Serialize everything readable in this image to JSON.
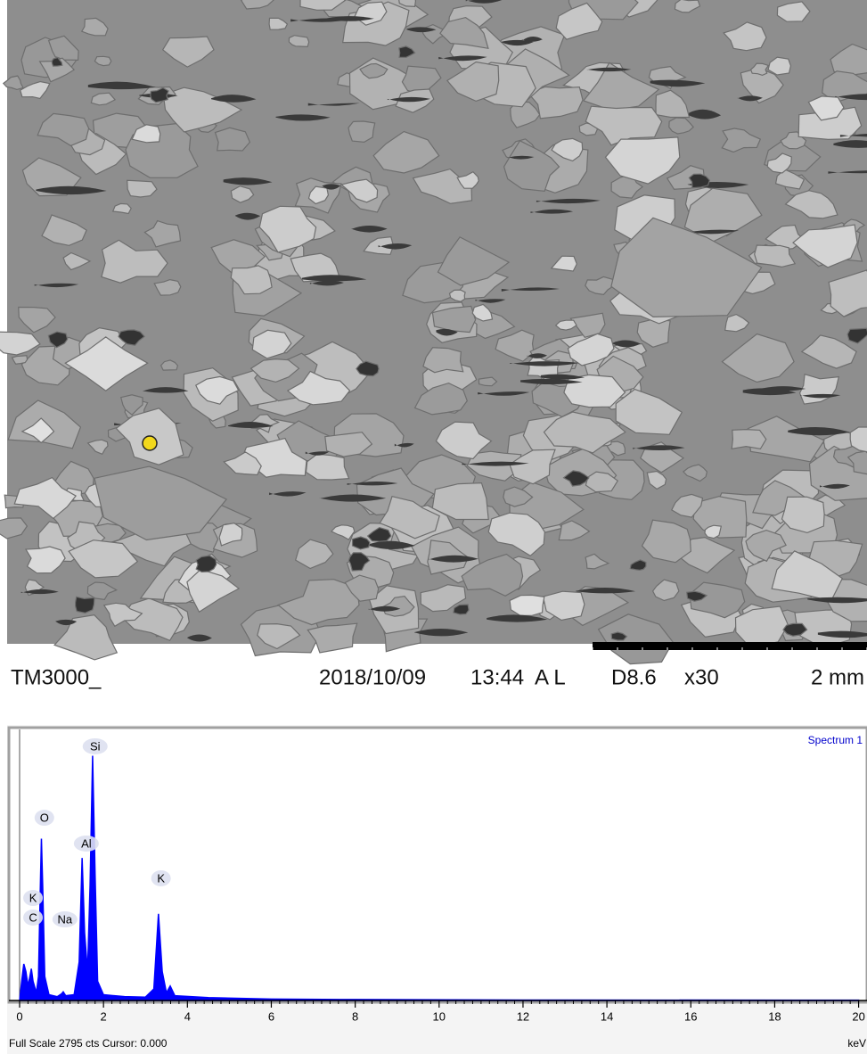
{
  "sem_image": {
    "caption": {
      "instrument": "TM3000_",
      "date": "2018/10/09",
      "time": "13:44",
      "mode": "A L",
      "distance": "D8.6",
      "magnification": "x30",
      "scale": "2 mm"
    }
  },
  "chart_data": {
    "type": "area",
    "title": "Spectrum 1",
    "color": "#0000ff",
    "x": [
      0,
      0.05,
      0.1,
      0.15,
      0.2,
      0.25,
      0.28,
      0.32,
      0.4,
      0.45,
      0.5,
      0.52,
      0.55,
      0.6,
      0.7,
      0.9,
      1.0,
      1.04,
      1.1,
      1.3,
      1.42,
      1.49,
      1.55,
      1.62,
      1.68,
      1.74,
      1.8,
      1.86,
      2.0,
      2.5,
      3.0,
      3.2,
      3.31,
      3.4,
      3.5,
      3.59,
      3.7,
      4.5,
      6,
      8,
      12,
      20
    ],
    "values": [
      0,
      200,
      380,
      300,
      150,
      260,
      330,
      200,
      80,
      250,
      1300,
      1680,
      1200,
      250,
      60,
      40,
      70,
      90,
      50,
      60,
      400,
      1480,
      700,
      300,
      1200,
      2540,
      1300,
      200,
      60,
      40,
      35,
      120,
      900,
      300,
      80,
      150,
      50,
      30,
      15,
      10,
      5,
      3
    ],
    "xlim": [
      0,
      20.2
    ],
    "ylim": [
      0,
      2795
    ],
    "xticks": [
      0,
      2,
      4,
      6,
      8,
      10,
      12,
      14,
      16,
      18,
      20
    ],
    "x_unit": "keV",
    "footer": "Full Scale 2795 cts Cursor: 0.000",
    "annotations": [
      {
        "text": "Si",
        "x": 1.8,
        "y": 2638
      },
      {
        "text": "O",
        "x": 0.59,
        "y": 1897
      },
      {
        "text": "Al",
        "x": 1.59,
        "y": 1629
      },
      {
        "text": "K",
        "x": 3.37,
        "y": 1268
      },
      {
        "text": "K",
        "x": 0.32,
        "y": 1064
      },
      {
        "text": "C",
        "x": 0.32,
        "y": 861
      },
      {
        "text": "Na",
        "x": 1.08,
        "y": 842
      }
    ]
  }
}
